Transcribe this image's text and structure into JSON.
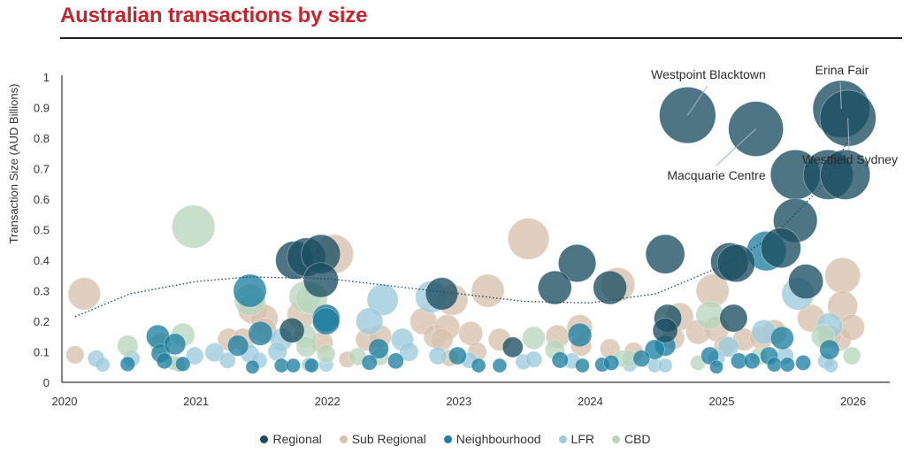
{
  "chart_data": {
    "type": "scatter",
    "title": "Australian transactions by size",
    "xlabel": "",
    "ylabel": "Transaction Size (AUD Billions)",
    "xlim": [
      2020,
      2026
    ],
    "ylim": [
      0,
      1
    ],
    "xticks": [
      "2020",
      "2021",
      "2022",
      "2023",
      "2024",
      "2025",
      "2026"
    ],
    "yticks": [
      "0",
      "0.1",
      "0.2",
      "0.3",
      "0.4",
      "0.5",
      "0.6",
      "0.7",
      "0.8",
      "0.9",
      "1"
    ],
    "grid": false,
    "legend_position": "bottom",
    "bubble_size": "proportional to transaction size",
    "series": [
      {
        "name": "Regional",
        "color": "#1b4e62",
        "points": [
          [
            2024.74,
            0.875
          ],
          [
            2025.26,
            0.83
          ],
          [
            2025.91,
            0.895
          ],
          [
            2025.96,
            0.865
          ],
          [
            2025.56,
            0.68
          ],
          [
            2025.81,
            0.68
          ],
          [
            2025.94,
            0.68
          ],
          [
            2025.56,
            0.53
          ],
          [
            2025.06,
            0.395
          ],
          [
            2025.11,
            0.39
          ],
          [
            2025.45,
            0.44
          ],
          [
            2025.64,
            0.33
          ],
          [
            2024.57,
            0.42
          ],
          [
            2023.9,
            0.39
          ],
          [
            2023.73,
            0.31
          ],
          [
            2024.15,
            0.31
          ],
          [
            2025.09,
            0.21
          ],
          [
            2021.75,
            0.4
          ],
          [
            2021.84,
            0.41
          ],
          [
            2021.95,
            0.42
          ],
          [
            2021.95,
            0.335
          ],
          [
            2022.87,
            0.29
          ],
          [
            2021.73,
            0.17
          ],
          [
            2023.41,
            0.115
          ],
          [
            2024.59,
            0.21
          ],
          [
            2024.57,
            0.17
          ]
        ]
      },
      {
        "name": "Sub Regional",
        "color": "#d7c2ad",
        "points": [
          [
            2020.15,
            0.29
          ],
          [
            2020.08,
            0.09
          ],
          [
            2022.05,
            0.42
          ],
          [
            2023.53,
            0.47
          ],
          [
            2023.22,
            0.3
          ],
          [
            2022.95,
            0.27
          ],
          [
            2024.21,
            0.32
          ],
          [
            2024.93,
            0.3
          ],
          [
            2025.92,
            0.35
          ],
          [
            2025.92,
            0.25
          ],
          [
            2025.68,
            0.21
          ],
          [
            2024.68,
            0.215
          ],
          [
            2021.43,
            0.24
          ],
          [
            2021.52,
            0.21
          ],
          [
            2021.52,
            0.17
          ],
          [
            2021.8,
            0.22
          ],
          [
            2021.25,
            0.14
          ],
          [
            2021.36,
            0.14
          ],
          [
            2021.99,
            0.21
          ],
          [
            2021.96,
            0.13
          ],
          [
            2022.3,
            0.14
          ],
          [
            2022.4,
            0.15
          ],
          [
            2022.73,
            0.2
          ],
          [
            2022.82,
            0.15
          ],
          [
            2022.91,
            0.18
          ],
          [
            2022.87,
            0.14
          ],
          [
            2023.09,
            0.16
          ],
          [
            2023.31,
            0.14
          ],
          [
            2023.14,
            0.1
          ],
          [
            2023.75,
            0.15
          ],
          [
            2023.92,
            0.18
          ],
          [
            2023.93,
            0.12
          ],
          [
            2024.15,
            0.11
          ],
          [
            2024.33,
            0.1
          ],
          [
            2024.63,
            0.145
          ],
          [
            2024.82,
            0.165
          ],
          [
            2024.96,
            0.175
          ],
          [
            2025.02,
            0.12
          ],
          [
            2025.17,
            0.14
          ],
          [
            2025.3,
            0.145
          ],
          [
            2025.4,
            0.165
          ],
          [
            2025.9,
            0.14
          ],
          [
            2025.82,
            0.15
          ],
          [
            2025.99,
            0.18
          ],
          [
            2022.93,
            0.08
          ],
          [
            2022.15,
            0.075
          ]
        ]
      },
      {
        "name": "Neighbourhood",
        "color": "#1f7fa0",
        "points": [
          [
            2021.41,
            0.3
          ],
          [
            2021.99,
            0.21
          ],
          [
            2023.92,
            0.155
          ],
          [
            2025.34,
            0.43
          ],
          [
            2025.46,
            0.145
          ],
          [
            2020.71,
            0.15
          ],
          [
            2020.73,
            0.095
          ],
          [
            2020.84,
            0.125
          ],
          [
            2021.32,
            0.12
          ],
          [
            2021.49,
            0.16
          ],
          [
            2021.99,
            0.2
          ],
          [
            2020.48,
            0.06
          ],
          [
            2020.76,
            0.07
          ],
          [
            2020.9,
            0.06
          ],
          [
            2021.65,
            0.055
          ],
          [
            2021.74,
            0.055
          ],
          [
            2021.88,
            0.055
          ],
          [
            2021.43,
            0.05
          ],
          [
            2022.39,
            0.11
          ],
          [
            2022.52,
            0.07
          ],
          [
            2022.32,
            0.065
          ],
          [
            2022.99,
            0.087
          ],
          [
            2023.15,
            0.055
          ],
          [
            2023.31,
            0.055
          ],
          [
            2023.77,
            0.073
          ],
          [
            2023.94,
            0.055
          ],
          [
            2024.09,
            0.058
          ],
          [
            2024.16,
            0.064
          ],
          [
            2024.57,
            0.12
          ],
          [
            2024.49,
            0.107
          ],
          [
            2024.91,
            0.087
          ],
          [
            2024.96,
            0.05
          ],
          [
            2025.13,
            0.07
          ],
          [
            2025.23,
            0.07
          ],
          [
            2025.36,
            0.087
          ],
          [
            2025.4,
            0.058
          ],
          [
            2025.5,
            0.058
          ],
          [
            2025.62,
            0.064
          ],
          [
            2025.82,
            0.107
          ],
          [
            2024.39,
            0.078
          ]
        ]
      },
      {
        "name": "LFR",
        "color": "#9ccbdc",
        "points": [
          [
            2022.42,
            0.27
          ],
          [
            2022.32,
            0.2
          ],
          [
            2022.79,
            0.28
          ],
          [
            2022.57,
            0.14
          ],
          [
            2022.62,
            0.1
          ],
          [
            2022.84,
            0.087
          ],
          [
            2023.08,
            0.072
          ],
          [
            2023.49,
            0.067
          ],
          [
            2023.57,
            0.075
          ],
          [
            2023.86,
            0.07
          ],
          [
            2024.3,
            0.058
          ],
          [
            2020.24,
            0.078
          ],
          [
            2020.29,
            0.058
          ],
          [
            2020.51,
            0.078
          ],
          [
            2020.99,
            0.087
          ],
          [
            2021.14,
            0.098
          ],
          [
            2021.24,
            0.072
          ],
          [
            2021.41,
            0.093
          ],
          [
            2021.48,
            0.072
          ],
          [
            2021.65,
            0.14
          ],
          [
            2021.62,
            0.101
          ],
          [
            2021.86,
            0.058
          ],
          [
            2021.99,
            0.058
          ],
          [
            2020.87,
            0.058
          ],
          [
            2025.58,
            0.29
          ],
          [
            2025.82,
            0.185
          ],
          [
            2025.32,
            0.165
          ],
          [
            2025.05,
            0.116
          ],
          [
            2024.96,
            0.078
          ],
          [
            2025.48,
            0.087
          ],
          [
            2025.79,
            0.07
          ],
          [
            2025.83,
            0.055
          ],
          [
            2024.49,
            0.055
          ],
          [
            2024.57,
            0.055
          ]
        ]
      },
      {
        "name": "CBD",
        "color": "#b9d6bc",
        "points": [
          [
            2020.98,
            0.51
          ],
          [
            2021.83,
            0.28
          ],
          [
            2021.88,
            0.275
          ],
          [
            2021.41,
            0.27
          ],
          [
            2020.48,
            0.12
          ],
          [
            2020.9,
            0.155
          ],
          [
            2020.73,
            0.127
          ],
          [
            2021.83,
            0.151
          ],
          [
            2021.84,
            0.116
          ],
          [
            2021.99,
            0.093
          ],
          [
            2020.83,
            0.064
          ],
          [
            2022.23,
            0.084
          ],
          [
            2022.4,
            0.084
          ],
          [
            2023.57,
            0.145
          ],
          [
            2023.73,
            0.107
          ],
          [
            2024.24,
            0.078
          ],
          [
            2024.91,
            0.22
          ],
          [
            2024.82,
            0.064
          ],
          [
            2024.3,
            0.078
          ],
          [
            2025.77,
            0.151
          ],
          [
            2025.99,
            0.087
          ],
          [
            2025.28,
            0.084
          ]
        ]
      }
    ],
    "trendline": {
      "style": "dotted",
      "points": [
        [
          2020.08,
          0.215
        ],
        [
          2020.5,
          0.29
        ],
        [
          2021,
          0.33
        ],
        [
          2021.4,
          0.345
        ],
        [
          2022,
          0.34
        ],
        [
          2022.6,
          0.31
        ],
        [
          2023,
          0.29
        ],
        [
          2023.5,
          0.265
        ],
        [
          2024,
          0.26
        ],
        [
          2024.5,
          0.29
        ],
        [
          2025,
          0.38
        ],
        [
          2025.4,
          0.48
        ],
        [
          2025.8,
          0.66
        ],
        [
          2025.97,
          0.8
        ]
      ]
    },
    "annotations": [
      {
        "label": "Westpoint Blacktown",
        "point": [
          2024.74,
          0.875
        ]
      },
      {
        "label": "Macquarie Centre",
        "point": [
          2025.26,
          0.83
        ]
      },
      {
        "label": "Erina Fair",
        "point": [
          2025.91,
          0.895
        ]
      },
      {
        "label": "Westfield Sydney",
        "point": [
          2025.96,
          0.865
        ]
      }
    ]
  }
}
